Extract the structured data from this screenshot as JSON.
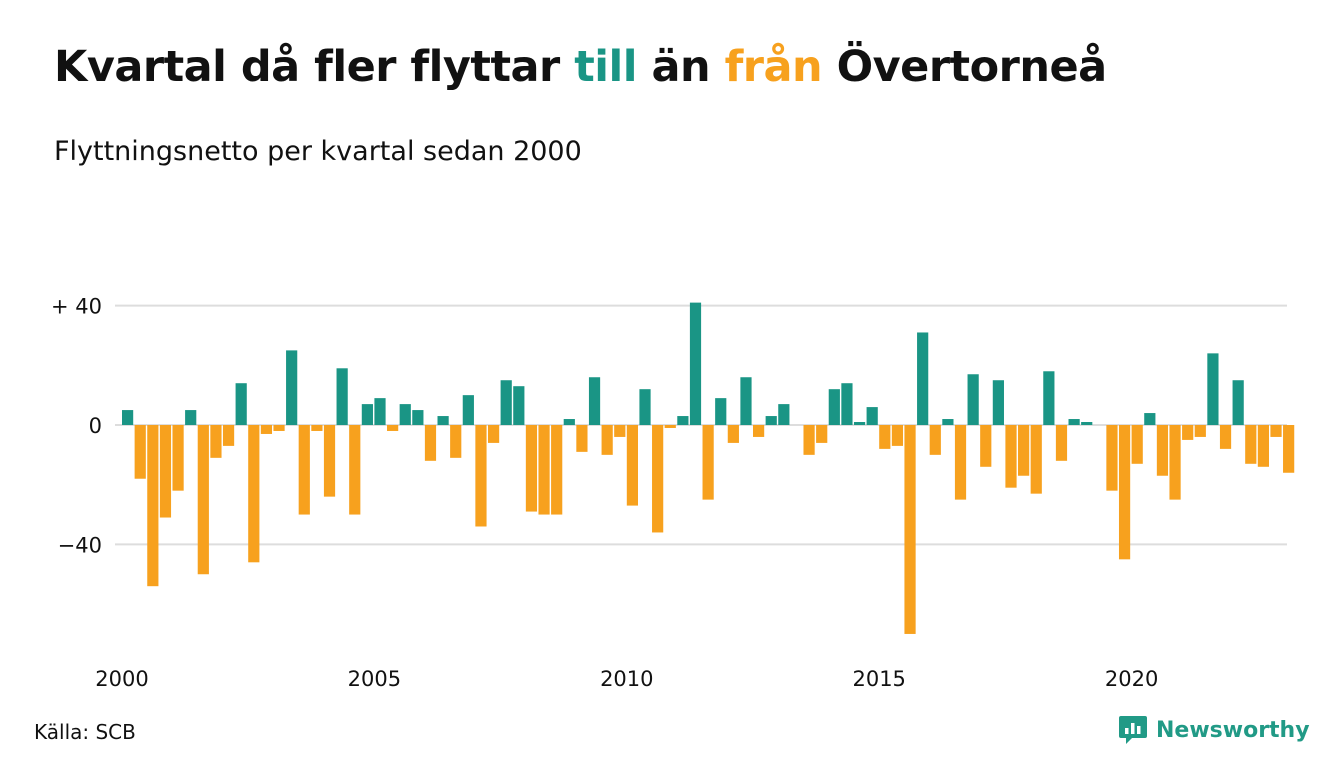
{
  "title": {
    "part1": "Kvartal då fler flyttar ",
    "part2": "till",
    "part3": " än ",
    "part4": "från",
    "part5": " Övertorneå"
  },
  "subtitle": "Flyttningsnetto per kvartal sedan 2000",
  "source": "Källa: SCB",
  "brand": "Newsworthy",
  "colors": {
    "positive": "#1a9585",
    "negative": "#f7a11e",
    "text": "#111111",
    "grid": "#dddddd",
    "brand": "#219a86"
  },
  "chart_data": {
    "type": "bar",
    "x_start": "2000 Q1",
    "ylim": [
      -70,
      40
    ],
    "y_ticks": [
      {
        "value": 40,
        "label": "+ 40"
      },
      {
        "value": 0,
        "label": "0"
      },
      {
        "value": -40,
        "label": "−40"
      }
    ],
    "x_ticks": [
      "2000",
      "2005",
      "2010",
      "2015",
      "2020"
    ],
    "grid": true,
    "values": [
      5,
      -18,
      -54,
      -31,
      -22,
      5,
      -50,
      -11,
      -7,
      14,
      -46,
      -3,
      -2,
      25,
      -30,
      -2,
      -24,
      19,
      -30,
      7,
      9,
      -2,
      7,
      5,
      -12,
      3,
      -11,
      10,
      -34,
      -6,
      15,
      13,
      -29,
      -30,
      -30,
      2,
      -9,
      16,
      -10,
      -4,
      -27,
      12,
      -36,
      -1,
      3,
      41,
      -25,
      9,
      -6,
      16,
      -4,
      3,
      7,
      0,
      -10,
      -6,
      12,
      14,
      1,
      6,
      -8,
      -7,
      -70,
      31,
      -10,
      2,
      -25,
      17,
      -14,
      15,
      -21,
      -17,
      -23,
      18,
      -12,
      2,
      1,
      0,
      -22,
      -45,
      -13,
      4,
      -17,
      -25,
      -5,
      -4,
      24,
      -8,
      15,
      -13,
      -14,
      -4,
      -16
    ]
  }
}
